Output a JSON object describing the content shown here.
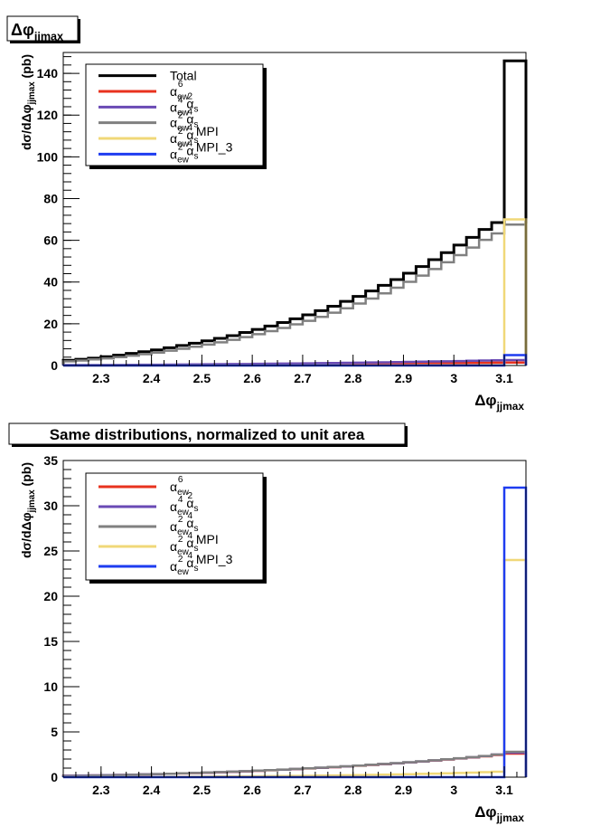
{
  "chart_data": [
    {
      "type": "line",
      "title": "Δφjjmax",
      "title_main": "Δφ",
      "title_sub": "jjmax",
      "xlabel": "Δφjjmax",
      "xlabel_main": "Δφ",
      "xlabel_sub": "jjmax",
      "ylabel": "dσ/dΔφjjmax (pb)",
      "ylabel_pre": "dσ/dΔφ",
      "ylabel_sub": "jjmax",
      "ylabel_post": " (pb)",
      "xlim": [
        2.225,
        3.143
      ],
      "ylim": [
        0,
        150
      ],
      "x_ticks": [
        "2.3",
        "2.4",
        "2.5",
        "2.6",
        "2.7",
        "2.8",
        "2.9",
        "3",
        "3.1"
      ],
      "y_ticks": [
        "0",
        "20",
        "40",
        "60",
        "80",
        "100",
        "120",
        "140"
      ],
      "bin_edges": [
        2.225,
        2.25,
        2.275,
        2.3,
        2.325,
        2.35,
        2.375,
        2.4,
        2.425,
        2.45,
        2.475,
        2.5,
        2.525,
        2.55,
        2.575,
        2.6,
        2.625,
        2.65,
        2.675,
        2.7,
        2.725,
        2.75,
        2.775,
        2.8,
        2.825,
        2.85,
        2.875,
        2.9,
        2.925,
        2.95,
        2.975,
        3.0,
        3.025,
        3.05,
        3.075,
        3.1,
        3.125,
        3.143
      ],
      "legend_position": "top-left",
      "series": [
        {
          "name": "Total",
          "legend": [
            "Total"
          ],
          "color": "#000000",
          "values": [
            2.5,
            3,
            3.5,
            4.2,
            5,
            5.8,
            6.6,
            7.5,
            8.5,
            9.6,
            10.7,
            11.8,
            13,
            14.3,
            15.8,
            17.3,
            18.9,
            20.6,
            22.4,
            24.3,
            26.3,
            28.4,
            30.7,
            33.1,
            35.7,
            38.4,
            41.2,
            44.2,
            47.4,
            50.7,
            54.1,
            57.7,
            61.4,
            65.2,
            68.5,
            146,
            146
          ]
        },
        {
          "name": "α_ew^6",
          "legend": [
            "α",
            "ew",
            "6"
          ],
          "color": "#e8321e",
          "values": [
            0.1,
            0.1,
            0.1,
            0.1,
            0.12,
            0.13,
            0.15,
            0.17,
            0.19,
            0.21,
            0.23,
            0.26,
            0.28,
            0.3,
            0.33,
            0.36,
            0.39,
            0.42,
            0.46,
            0.5,
            0.54,
            0.58,
            0.62,
            0.67,
            0.72,
            0.78,
            0.84,
            0.9,
            0.97,
            1.04,
            1.11,
            1.18,
            1.25,
            1.32,
            1.38,
            1.4,
            1.4
          ]
        },
        {
          "name": "α_ew^4 α_s^2",
          "legend": [
            "α",
            "ew",
            "4",
            " α",
            "s",
            "2"
          ],
          "color": "#6a4ab4",
          "values": [
            0.2,
            0.2,
            0.22,
            0.25,
            0.28,
            0.32,
            0.36,
            0.4,
            0.44,
            0.48,
            0.53,
            0.58,
            0.63,
            0.68,
            0.73,
            0.79,
            0.85,
            0.91,
            0.98,
            1.05,
            1.12,
            1.2,
            1.28,
            1.36,
            1.45,
            1.54,
            1.63,
            1.73,
            1.83,
            1.93,
            2.03,
            2.14,
            2.25,
            2.36,
            2.47,
            2.6,
            2.6
          ]
        },
        {
          "name": "α_ew^2 α_s^4",
          "legend": [
            "α",
            "ew",
            "2",
            " α",
            "s",
            "4"
          ],
          "color": "#808080",
          "values": [
            2,
            2.4,
            2.9,
            3.4,
            4,
            4.7,
            5.4,
            6.2,
            7.1,
            8,
            9,
            10,
            11.1,
            12.3,
            13.6,
            15,
            16.5,
            18,
            19.7,
            21.4,
            23.3,
            25.3,
            27.4,
            29.7,
            32.1,
            34.6,
            37.3,
            40.1,
            43.1,
            46.2,
            49.5,
            52.9,
            56.5,
            60.2,
            63.3,
            67.5,
            67.5
          ]
        },
        {
          "name": "α_ew^2 α_s^4 MPI",
          "legend": [
            "α",
            "ew",
            "2",
            " α",
            "s",
            "4",
            " MPI"
          ],
          "color": "#f0d878",
          "values": [
            0.02,
            0.02,
            0.02,
            0.03,
            0.03,
            0.03,
            0.03,
            0.04,
            0.04,
            0.04,
            0.05,
            0.05,
            0.05,
            0.06,
            0.06,
            0.06,
            0.07,
            0.07,
            0.08,
            0.08,
            0.09,
            0.09,
            0.1,
            0.1,
            0.11,
            0.12,
            0.12,
            0.13,
            0.14,
            0.15,
            0.16,
            0.17,
            0.18,
            0.19,
            0.2,
            70,
            70
          ]
        },
        {
          "name": "α_ew^2 α_s^4 MPI_3",
          "legend": [
            "α",
            "ew",
            "2",
            " α",
            "s",
            "4",
            " MPI_3"
          ],
          "color": "#1e3cf0",
          "values": [
            0.01,
            0.01,
            0.01,
            0.01,
            0.01,
            0.01,
            0.01,
            0.01,
            0.01,
            0.01,
            0.01,
            0.01,
            0.01,
            0.01,
            0.01,
            0.01,
            0.01,
            0.01,
            0.01,
            0.01,
            0.01,
            0.01,
            0.01,
            0.01,
            0.01,
            0.01,
            0.01,
            0.01,
            0.01,
            0.01,
            0.01,
            0.01,
            0.01,
            0.01,
            0.01,
            5,
            5
          ]
        }
      ]
    },
    {
      "type": "line",
      "title": "Same distributions, normalized to unit area",
      "xlabel": "Δφjjmax",
      "xlabel_main": "Δφ",
      "xlabel_sub": "jjmax",
      "ylabel": "dσ/dΔφjjmax (pb)",
      "ylabel_pre": "dσ/dΔφ",
      "ylabel_sub": "jjmax",
      "ylabel_post": " (pb)",
      "xlim": [
        2.225,
        3.143
      ],
      "ylim": [
        0,
        35
      ],
      "x_ticks": [
        "2.3",
        "2.4",
        "2.5",
        "2.6",
        "2.7",
        "2.8",
        "2.9",
        "3",
        "3.1"
      ],
      "y_ticks": [
        "0",
        "5",
        "10",
        "15",
        "20",
        "25",
        "30",
        "35"
      ],
      "bin_edges": [
        2.225,
        2.25,
        2.275,
        2.3,
        2.325,
        2.35,
        2.375,
        2.4,
        2.425,
        2.45,
        2.475,
        2.5,
        2.525,
        2.55,
        2.575,
        2.6,
        2.625,
        2.65,
        2.675,
        2.7,
        2.725,
        2.75,
        2.775,
        2.8,
        2.825,
        2.85,
        2.875,
        2.9,
        2.925,
        2.95,
        2.975,
        3.0,
        3.025,
        3.05,
        3.075,
        3.1,
        3.125,
        3.143
      ],
      "legend_position": "top-left",
      "series": [
        {
          "name": "α_ew^6",
          "legend": [
            "α",
            "ew",
            "6"
          ],
          "color": "#e8321e",
          "values": [
            0.15,
            0.17,
            0.19,
            0.21,
            0.24,
            0.27,
            0.3,
            0.33,
            0.37,
            0.41,
            0.45,
            0.49,
            0.54,
            0.59,
            0.64,
            0.7,
            0.76,
            0.82,
            0.89,
            0.96,
            1.03,
            1.1,
            1.18,
            1.26,
            1.35,
            1.44,
            1.53,
            1.63,
            1.73,
            1.84,
            1.95,
            2.06,
            2.18,
            2.3,
            2.45,
            2.6,
            2.6
          ]
        },
        {
          "name": "α_ew^4 α_s^2",
          "legend": [
            "α",
            "ew",
            "4",
            " α",
            "s",
            "2"
          ],
          "color": "#6a4ab4",
          "values": [
            0.16,
            0.18,
            0.2,
            0.22,
            0.25,
            0.28,
            0.31,
            0.34,
            0.38,
            0.42,
            0.46,
            0.5,
            0.55,
            0.6,
            0.65,
            0.71,
            0.77,
            0.83,
            0.9,
            0.97,
            1.04,
            1.11,
            1.19,
            1.27,
            1.36,
            1.45,
            1.54,
            1.64,
            1.74,
            1.85,
            1.96,
            2.08,
            2.2,
            2.33,
            2.5,
            2.7,
            2.7
          ]
        },
        {
          "name": "α_ew^2 α_s^4",
          "legend": [
            "α",
            "ew",
            "2",
            " α",
            "s",
            "4"
          ],
          "color": "#808080",
          "values": [
            0.12,
            0.14,
            0.17,
            0.2,
            0.23,
            0.26,
            0.3,
            0.34,
            0.38,
            0.42,
            0.46,
            0.51,
            0.56,
            0.61,
            0.66,
            0.72,
            0.78,
            0.84,
            0.91,
            0.98,
            1.05,
            1.12,
            1.2,
            1.28,
            1.37,
            1.46,
            1.55,
            1.65,
            1.75,
            1.86,
            1.97,
            2.09,
            2.21,
            2.34,
            2.5,
            2.8,
            2.8
          ]
        },
        {
          "name": "α_ew^2 α_s^4 MPI",
          "legend": [
            "α",
            "ew",
            "2",
            " α",
            "s",
            "4",
            " MPI"
          ],
          "color": "#f0d878",
          "values": [
            0.01,
            0.01,
            0.01,
            0.02,
            0.02,
            0.02,
            0.03,
            0.03,
            0.04,
            0.04,
            0.05,
            0.06,
            0.07,
            0.08,
            0.09,
            0.1,
            0.11,
            0.12,
            0.14,
            0.15,
            0.17,
            0.19,
            0.21,
            0.23,
            0.25,
            0.28,
            0.3,
            0.33,
            0.36,
            0.39,
            0.42,
            0.46,
            0.5,
            0.55,
            0.6,
            24,
            24
          ]
        },
        {
          "name": "α_ew^2 α_s^4 MPI_3",
          "legend": [
            "α",
            "ew",
            "2",
            " α",
            "s",
            "4",
            " MPI_3"
          ],
          "color": "#1e3cf0",
          "values": [
            0.005,
            0.005,
            0.005,
            0.005,
            0.005,
            0.005,
            0.005,
            0.005,
            0.005,
            0.005,
            0.005,
            0.005,
            0.005,
            0.005,
            0.005,
            0.005,
            0.005,
            0.005,
            0.005,
            0.005,
            0.005,
            0.005,
            0.005,
            0.005,
            0.005,
            0.005,
            0.005,
            0.005,
            0.005,
            0.005,
            0.005,
            0.005,
            0.005,
            0.005,
            0.005,
            32,
            32
          ]
        }
      ]
    }
  ]
}
